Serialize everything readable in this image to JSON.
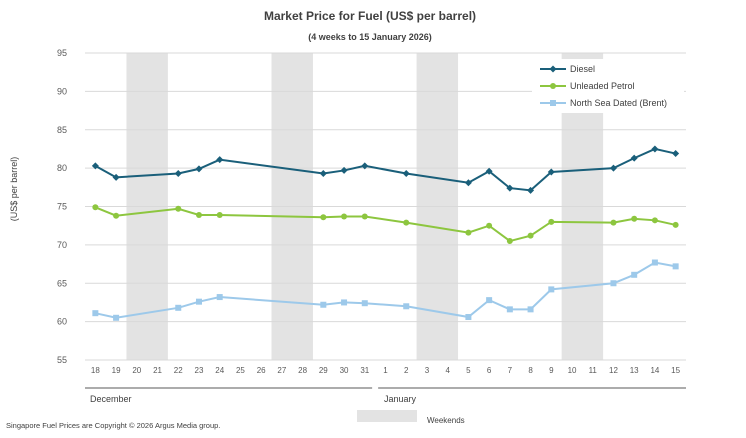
{
  "chart_data": {
    "type": "line",
    "title": "Market Price for Fuel (US$ per barrel)",
    "subtitle": "(4 weeks to 15 January 2026)",
    "ylabel": "(US$ per barrel)",
    "xlabel": "",
    "ylim": [
      55,
      95
    ],
    "yticks": [
      55,
      60,
      65,
      70,
      75,
      80,
      85,
      90,
      95
    ],
    "grid": true,
    "legend_position": "top-right",
    "categories": [
      "18",
      "19",
      "20",
      "21",
      "22",
      "23",
      "24",
      "25",
      "26",
      "27",
      "28",
      "29",
      "30",
      "31",
      "1",
      "2",
      "3",
      "4",
      "5",
      "6",
      "7",
      "8",
      "9",
      "10",
      "11",
      "12",
      "13",
      "14",
      "15"
    ],
    "months": [
      {
        "label": "December",
        "start_index": 0
      },
      {
        "label": "January",
        "start_index": 14
      }
    ],
    "weekend_ranges": [
      [
        2,
        3
      ],
      [
        9,
        10
      ],
      [
        16,
        17
      ],
      [
        23,
        24
      ]
    ],
    "weekend_label": "Weekends",
    "series": [
      {
        "name": "Diesel",
        "color": "#1a5f7a",
        "marker": "diamond",
        "values": [
          80.3,
          78.8,
          null,
          null,
          79.3,
          79.9,
          81.1,
          null,
          null,
          null,
          null,
          79.3,
          79.7,
          80.3,
          null,
          79.3,
          null,
          null,
          78.1,
          79.6,
          77.4,
          77.1,
          79.5,
          null,
          null,
          80.0,
          81.3,
          82.5,
          81.9
        ]
      },
      {
        "name": "Unleaded Petrol",
        "color": "#8dc63f",
        "marker": "circle",
        "values": [
          74.9,
          73.8,
          null,
          null,
          74.7,
          73.9,
          73.9,
          null,
          null,
          null,
          null,
          73.6,
          73.7,
          73.7,
          null,
          72.9,
          null,
          null,
          71.6,
          72.5,
          70.5,
          71.2,
          73.0,
          null,
          null,
          72.9,
          73.4,
          73.2,
          72.6
        ]
      },
      {
        "name": "North Sea Dated (Brent)",
        "color": "#9dc9ea",
        "marker": "square",
        "values": [
          61.1,
          60.5,
          null,
          null,
          61.8,
          62.6,
          63.2,
          null,
          null,
          null,
          null,
          62.2,
          62.5,
          62.4,
          null,
          62.0,
          null,
          null,
          60.6,
          62.8,
          61.6,
          61.6,
          64.2,
          null,
          null,
          65.0,
          66.1,
          67.7,
          67.2
        ]
      }
    ],
    "footer": "Singapore Fuel Prices are Copyright © 2026 Argus Media group."
  },
  "colors": {
    "weekend": "#e3e3e3",
    "grid": "#d9d9d9",
    "axis": "#595959"
  }
}
